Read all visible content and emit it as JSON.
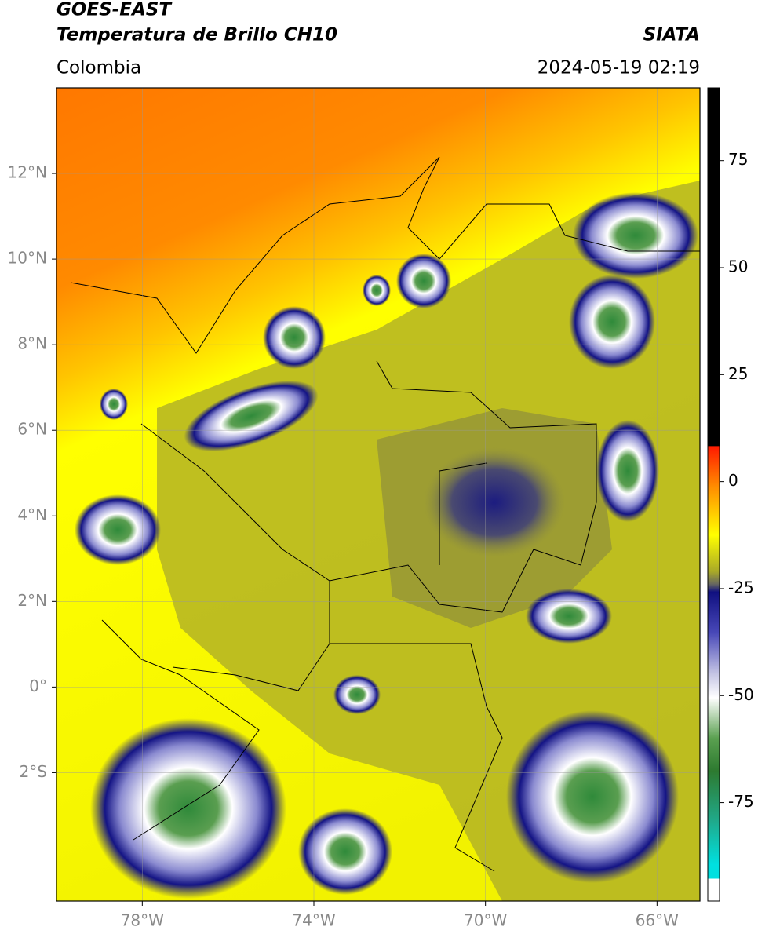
{
  "header": {
    "title": "GOES-EAST",
    "subtitle": "Temperatura de Brillo CH10",
    "region": "Colombia",
    "source": "SIATA",
    "datetime": "2024-05-19 02:19"
  },
  "map": {
    "xlim": [
      -80,
      -65
    ],
    "ylim": [
      -5,
      14
    ],
    "xticks": [
      {
        "value": -78,
        "label": "78°W"
      },
      {
        "value": -74,
        "label": "74°W"
      },
      {
        "value": -70,
        "label": "70°W"
      },
      {
        "value": -66,
        "label": "66°W"
      }
    ],
    "yticks": [
      {
        "value": -2,
        "label": "2°S"
      },
      {
        "value": 0,
        "label": "0°"
      },
      {
        "value": 2,
        "label": "2°N"
      },
      {
        "value": 4,
        "label": "4°N"
      },
      {
        "value": 6,
        "label": "6°N"
      },
      {
        "value": 8,
        "label": "8°N"
      },
      {
        "value": 10,
        "label": "10°N"
      },
      {
        "value": 12,
        "label": "12°N"
      }
    ]
  },
  "colorbar": {
    "lim": [
      -98,
      92
    ],
    "ticks": [
      -75,
      -50,
      -25,
      0,
      25,
      50,
      75
    ]
  }
}
